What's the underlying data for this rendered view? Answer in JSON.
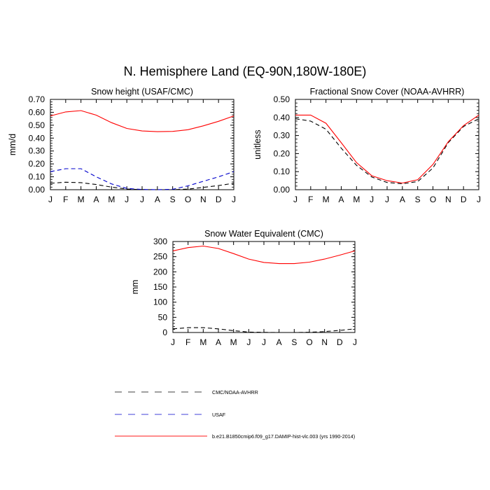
{
  "figure": {
    "title": "N. Hemisphere Land (EQ-90N,180W-180E)"
  },
  "legend": {
    "entries": [
      {
        "label": "CMC/NOAA-AVHRR",
        "color": "#000000",
        "dash": "dashed"
      },
      {
        "label": "USAF",
        "color": "#0000cc",
        "dash": "dashed"
      },
      {
        "label": "b.e21.B1850cmip6.f09_g17.DAMIP-hist-vlc.003 (yrs 1990-2014)",
        "color": "#ff0000",
        "dash": "solid"
      }
    ]
  },
  "chart_data": [
    {
      "type": "line",
      "title": "Snow height (USAF/CMC)",
      "xlabel": "",
      "ylabel": "mm/d",
      "categories": [
        "J",
        "F",
        "M",
        "A",
        "M",
        "J",
        "J",
        "A",
        "S",
        "O",
        "N",
        "D",
        "J"
      ],
      "ylim": [
        0,
        0.7
      ],
      "yticks": [
        "0.00",
        "0.10",
        "0.20",
        "0.30",
        "0.40",
        "0.50",
        "0.60",
        "0.70"
      ],
      "ytick_values": [
        0,
        0.1,
        0.2,
        0.3,
        0.4,
        0.5,
        0.6,
        0.7
      ],
      "series": [
        {
          "name": "CMC/NOAA-AVHRR",
          "color": "#000000",
          "dash": "dashed",
          "values": [
            0.05,
            0.058,
            0.055,
            0.04,
            0.02,
            0.005,
            0.001,
            0.0,
            0.0,
            0.005,
            0.018,
            0.032,
            0.05
          ]
        },
        {
          "name": "USAF",
          "color": "#0000cc",
          "dash": "dashed",
          "values": [
            0.14,
            0.163,
            0.163,
            0.1,
            0.045,
            0.01,
            0.002,
            0.0,
            0.003,
            0.03,
            0.065,
            0.1,
            0.14
          ]
        },
        {
          "name": "b.e21.B1850cmip6.f09_g17.DAMIP-hist-vlc.003 (yrs 1990-2014)",
          "color": "#ff0000",
          "dash": "solid",
          "values": [
            0.572,
            0.603,
            0.613,
            0.578,
            0.52,
            0.475,
            0.455,
            0.45,
            0.452,
            0.465,
            0.495,
            0.53,
            0.572
          ]
        }
      ]
    },
    {
      "type": "line",
      "title": "Fractional Snow Cover (NOAA-AVHRR)",
      "xlabel": "",
      "ylabel": "unitless",
      "categories": [
        "J",
        "F",
        "M",
        "A",
        "M",
        "J",
        "J",
        "A",
        "S",
        "O",
        "N",
        "D",
        "J"
      ],
      "ylim": [
        0,
        0.5
      ],
      "yticks": [
        "0.00",
        "0.10",
        "0.20",
        "0.30",
        "0.40",
        "0.50"
      ],
      "ytick_values": [
        0,
        0.1,
        0.2,
        0.3,
        0.4,
        0.5
      ],
      "series": [
        {
          "name": "CMC/NOAA-AVHRR",
          "color": "#000000",
          "dash": "dashed",
          "values": [
            0.393,
            0.38,
            0.335,
            0.23,
            0.135,
            0.07,
            0.04,
            0.033,
            0.045,
            0.12,
            0.26,
            0.35,
            0.393
          ]
        },
        {
          "name": "b.e21.B1850cmip6.f09_g17.DAMIP-hist-vlc.003 (yrs 1990-2014)",
          "color": "#ff0000",
          "dash": "solid",
          "values": [
            0.413,
            0.413,
            0.368,
            0.26,
            0.15,
            0.077,
            0.05,
            0.037,
            0.055,
            0.14,
            0.265,
            0.355,
            0.413
          ]
        }
      ]
    },
    {
      "type": "line",
      "title": "Snow Water Equivalent (CMC)",
      "xlabel": "",
      "ylabel": "mm",
      "categories": [
        "J",
        "F",
        "M",
        "A",
        "M",
        "J",
        "J",
        "A",
        "S",
        "O",
        "N",
        "D",
        "J"
      ],
      "ylim": [
        0,
        300
      ],
      "yticks": [
        "0",
        "50",
        "100",
        "150",
        "200",
        "250",
        "300"
      ],
      "ytick_values": [
        0,
        50,
        100,
        150,
        200,
        250,
        300
      ],
      "series": [
        {
          "name": "CMC/NOAA-AVHRR",
          "color": "#000000",
          "dash": "dashed",
          "values": [
            12,
            16,
            16,
            12,
            6,
            1.5,
            0.5,
            0,
            0,
            1,
            3,
            7,
            12
          ]
        },
        {
          "name": "b.e21.B1850cmip6.f09_g17.DAMIP-hist-vlc.003 (yrs 1990-2014)",
          "color": "#ff0000",
          "dash": "solid",
          "values": [
            269,
            280,
            285,
            277,
            260,
            242,
            231,
            227,
            227,
            232,
            242,
            255,
            269
          ]
        }
      ]
    }
  ]
}
